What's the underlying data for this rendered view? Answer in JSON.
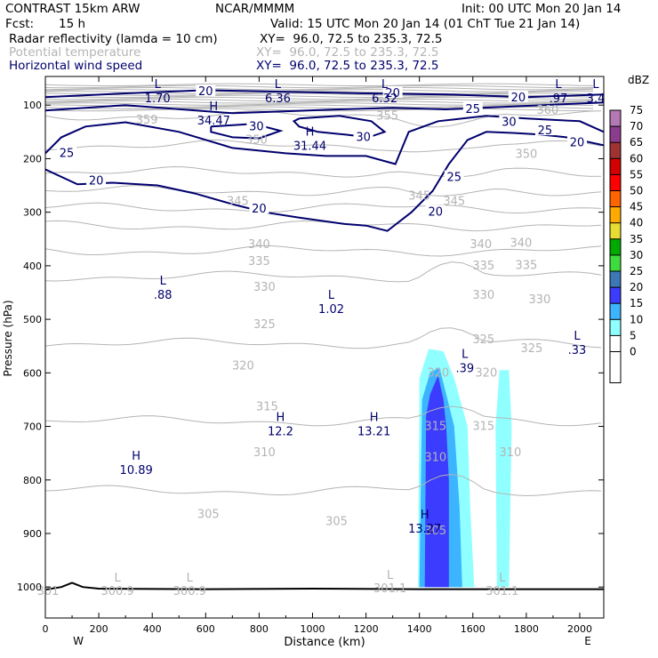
{
  "header": {
    "model": "CONTRAST 15km ARW",
    "org": "NCAR/MMMM",
    "init": "Init: 00 UTC Mon 20 Jan 14",
    "fcst_label": "Fcst:",
    "fcst_value": "15 h",
    "valid": "Valid: 15 UTC Mon 20 Jan 14 (01 ChT Tue 21 Jan 14)",
    "fields": [
      {
        "name": "Radar reflectivity (lamda = 10 cm)",
        "xy": "XY=  96.0, 72.5 to 235.3, 72.5",
        "color": "#000000"
      },
      {
        "name": "Potential temperature",
        "xy": "XY=  96.0, 72.5 to 235.3, 72.5",
        "color": "#b4b4b4"
      },
      {
        "name": "Horizontal wind speed",
        "xy": "XY=  96.0, 72.5 to 235.3, 72.5",
        "color": "#00006e"
      }
    ]
  },
  "chart_data": {
    "type": "contour cross-section",
    "xlabel": "Distance (km)",
    "ylabel": "Pressure (hPa)",
    "xlim": [
      0,
      2090
    ],
    "x_ticks": [
      "0",
      "200",
      "400",
      "600",
      "800",
      "1000",
      "1200",
      "1400",
      "1600",
      "1800",
      "2000"
    ],
    "x_tick_values": [
      0,
      200,
      400,
      600,
      800,
      1000,
      1200,
      1400,
      1600,
      1800,
      2000
    ],
    "y_ticks": [
      "100",
      "200",
      "300",
      "400",
      "500",
      "600",
      "700",
      "800",
      "900",
      "1000"
    ],
    "y_tick_values": [
      100,
      200,
      300,
      400,
      500,
      600,
      700,
      800,
      900,
      1000
    ],
    "ylim": [
      1050,
      50
    ],
    "left_end": "W",
    "right_end": "E",
    "colorbar": {
      "unit": "dBZ",
      "levels": [
        "0",
        "5",
        "10",
        "15",
        "20",
        "25",
        "30",
        "35",
        "40",
        "45",
        "50",
        "55",
        "60",
        "65",
        "70",
        "75"
      ],
      "colors": [
        "#ffffff",
        "#90ffff",
        "#3cb4ff",
        "#3c3cff",
        "#3c78b4",
        "#3cdc3c",
        "#00aa00",
        "#e6dc32",
        "#ffaa00",
        "#ff6400",
        "#ff0000",
        "#d20000",
        "#a03232",
        "#8c3c8c",
        "#b478b4"
      ]
    },
    "reflectivity_cells": [
      {
        "level": 5,
        "color": "#90ffff",
        "points": [
          [
            1395,
            1000
          ],
          [
            1400,
            610
          ],
          [
            1435,
            555
          ],
          [
            1490,
            560
          ],
          [
            1530,
            610
          ],
          [
            1580,
            700
          ],
          [
            1590,
            850
          ],
          [
            1605,
            1000
          ]
        ]
      },
      {
        "level": 5,
        "color": "#90ffff",
        "points": [
          [
            1690,
            1000
          ],
          [
            1685,
            700
          ],
          [
            1700,
            595
          ],
          [
            1735,
            595
          ],
          [
            1745,
            700
          ],
          [
            1740,
            850
          ],
          [
            1735,
            1000
          ]
        ]
      },
      {
        "level": 10,
        "color": "#3cb4ff",
        "points": [
          [
            1400,
            1000
          ],
          [
            1410,
            650
          ],
          [
            1440,
            600
          ],
          [
            1475,
            590
          ],
          [
            1500,
            640
          ],
          [
            1530,
            700
          ],
          [
            1550,
            850
          ],
          [
            1560,
            1000
          ]
        ]
      },
      {
        "level": 15,
        "color": "#3c3cff",
        "points": [
          [
            1420,
            1000
          ],
          [
            1425,
            680
          ],
          [
            1440,
            640
          ],
          [
            1470,
            605
          ],
          [
            1490,
            650
          ],
          [
            1500,
            700
          ],
          [
            1510,
            800
          ],
          [
            1510,
            1000
          ]
        ]
      }
    ],
    "theta_isotherms": [
      {
        "value": 355,
        "p": 120
      },
      {
        "value": 350,
        "p": 175
      },
      {
        "value": 345,
        "p": 225
      },
      {
        "value": 340,
        "p": 260
      },
      {
        "value": 335,
        "p": 292
      },
      {
        "value": 330,
        "p": 325
      },
      {
        "value": 325,
        "p": 372
      },
      {
        "value": 320,
        "p": 420
      },
      {
        "value": 315,
        "p": 545
      },
      {
        "value": 310,
        "p": 690
      },
      {
        "value": 305,
        "p": 820
      }
    ],
    "theta_labels": [
      {
        "text": "355",
        "x": 1280,
        "p": 120
      },
      {
        "text": "360",
        "x": 1880,
        "p": 110
      },
      {
        "text": "359",
        "x": 380,
        "p": 128
      },
      {
        "text": "350",
        "x": 790,
        "p": 165
      },
      {
        "text": "350",
        "x": 1800,
        "p": 192
      },
      {
        "text": "345",
        "x": 720,
        "p": 280
      },
      {
        "text": "345",
        "x": 1400,
        "p": 270
      },
      {
        "text": "345",
        "x": 1530,
        "p": 280
      },
      {
        "text": "340",
        "x": 800,
        "p": 360
      },
      {
        "text": "340",
        "x": 1630,
        "p": 360
      },
      {
        "text": "340",
        "x": 1780,
        "p": 358
      },
      {
        "text": "335",
        "x": 800,
        "p": 392
      },
      {
        "text": "335",
        "x": 1640,
        "p": 400
      },
      {
        "text": "335",
        "x": 1800,
        "p": 399
      },
      {
        "text": "330",
        "x": 820,
        "p": 440
      },
      {
        "text": "330",
        "x": 1640,
        "p": 455
      },
      {
        "text": "330",
        "x": 1850,
        "p": 463
      },
      {
        "text": "325",
        "x": 820,
        "p": 510
      },
      {
        "text": "325",
        "x": 1640,
        "p": 538
      },
      {
        "text": "325",
        "x": 1820,
        "p": 555
      },
      {
        "text": "320",
        "x": 740,
        "p": 587
      },
      {
        "text": "320",
        "x": 1470,
        "p": 600
      },
      {
        "text": "320",
        "x": 1650,
        "p": 600
      },
      {
        "text": "315",
        "x": 830,
        "p": 663
      },
      {
        "text": "315",
        "x": 1460,
        "p": 700
      },
      {
        "text": "315",
        "x": 1640,
        "p": 700
      },
      {
        "text": "310",
        "x": 820,
        "p": 749
      },
      {
        "text": "310",
        "x": 1460,
        "p": 758
      },
      {
        "text": "310",
        "x": 1740,
        "p": 749
      },
      {
        "text": "305",
        "x": 610,
        "p": 864
      },
      {
        "text": "305",
        "x": 1090,
        "p": 878
      },
      {
        "text": "305",
        "x": 1460,
        "p": 895
      }
    ],
    "wind_contours": [
      {
        "value": 30,
        "points": [
          [
            0,
            85
          ],
          [
            300,
            78
          ],
          [
            600,
            72
          ],
          [
            900,
            75
          ],
          [
            1200,
            78
          ],
          [
            1500,
            80
          ],
          [
            1800,
            85
          ],
          [
            2090,
            80
          ]
        ]
      },
      {
        "value": 25,
        "points": [
          [
            0,
            110
          ],
          [
            300,
            100
          ],
          [
            700,
            115
          ],
          [
            1100,
            108
          ],
          [
            1300,
            105
          ],
          [
            1500,
            108
          ],
          [
            2090,
            95
          ]
        ]
      },
      {
        "value": 30,
        "points": [
          [
            950,
            125
          ],
          [
            1100,
            120
          ],
          [
            1220,
            130
          ],
          [
            1270,
            150
          ],
          [
            1210,
            160
          ],
          [
            1120,
            155
          ],
          [
            1020,
            150
          ],
          [
            950,
            140
          ],
          [
            930,
            130
          ],
          [
            950,
            125
          ]
        ]
      },
      {
        "value": 30,
        "points": [
          [
            620,
            140
          ],
          [
            780,
            135
          ],
          [
            880,
            148
          ],
          [
            800,
            162
          ],
          [
            700,
            160
          ],
          [
            620,
            150
          ],
          [
            620,
            140
          ]
        ]
      },
      {
        "value": 25,
        "points": [
          [
            0,
            190
          ],
          [
            60,
            160
          ],
          [
            150,
            140
          ],
          [
            300,
            132
          ],
          [
            500,
            150
          ],
          [
            700,
            180
          ],
          [
            900,
            190
          ],
          [
            1050,
            195
          ],
          [
            1200,
            195
          ],
          [
            1310,
            210
          ],
          [
            1360,
            150
          ],
          [
            1470,
            130
          ],
          [
            1650,
            120
          ],
          [
            1800,
            125
          ],
          [
            2000,
            130
          ],
          [
            2090,
            150
          ]
        ]
      },
      {
        "value": 20,
        "points": [
          [
            0,
            220
          ],
          [
            120,
            248
          ],
          [
            250,
            245
          ],
          [
            420,
            250
          ],
          [
            560,
            265
          ],
          [
            700,
            285
          ],
          [
            820,
            300
          ],
          [
            950,
            310
          ],
          [
            1120,
            322
          ],
          [
            1200,
            325
          ],
          [
            1280,
            335
          ],
          [
            1370,
            300
          ],
          [
            1450,
            260
          ],
          [
            1510,
            210
          ],
          [
            1580,
            165
          ],
          [
            1650,
            150
          ],
          [
            1750,
            152
          ],
          [
            1850,
            155
          ],
          [
            1950,
            160
          ],
          [
            2090,
            175
          ]
        ]
      }
    ],
    "wind_labels": [
      {
        "text": "20",
        "x": 600,
        "p": 75
      },
      {
        "text": "20",
        "x": 1300,
        "p": 78
      },
      {
        "text": "20",
        "x": 1770,
        "p": 86
      },
      {
        "text": "25",
        "x": 1600,
        "p": 108
      },
      {
        "text": "30",
        "x": 790,
        "p": 140
      },
      {
        "text": "30",
        "x": 1190,
        "p": 160
      },
      {
        "text": "30",
        "x": 1735,
        "p": 132
      },
      {
        "text": "25",
        "x": 1870,
        "p": 148
      },
      {
        "text": "20",
        "x": 1990,
        "p": 170
      },
      {
        "text": "25",
        "x": 80,
        "p": 190
      },
      {
        "text": "25",
        "x": 1530,
        "p": 235
      },
      {
        "text": "20",
        "x": 190,
        "p": 242
      },
      {
        "text": "20",
        "x": 800,
        "p": 294
      },
      {
        "text": "20",
        "x": 1460,
        "p": 300
      }
    ],
    "extrema": [
      {
        "letter": "L",
        "value": "1.70",
        "x": 420,
        "p": 68
      },
      {
        "letter": "L",
        "value": "6.36",
        "x": 870,
        "p": 68
      },
      {
        "letter": "L",
        "value": "6.32",
        "x": 1270,
        "p": 68
      },
      {
        "letter": "L",
        "value": ".97",
        "x": 1920,
        "p": 68
      },
      {
        "letter": "L",
        "value": "3.4",
        "x": 2060,
        "p": 68
      },
      {
        "letter": "H",
        "value": "34.47",
        "x": 630,
        "p": 110
      },
      {
        "letter": "H",
        "value": "31.44",
        "x": 990,
        "p": 157
      },
      {
        "letter": "L",
        "value": ".88",
        "x": 440,
        "p": 435
      },
      {
        "letter": "L",
        "value": "1.02",
        "x": 1070,
        "p": 462
      },
      {
        "letter": "L",
        "value": ".33",
        "x": 1990,
        "p": 538
      },
      {
        "letter": "L",
        "value": ".39",
        "x": 1570,
        "p": 572
      },
      {
        "letter": "H",
        "value": "12.2",
        "x": 880,
        "p": 690
      },
      {
        "letter": "H",
        "value": "13.21",
        "x": 1230,
        "p": 690
      },
      {
        "letter": "H",
        "value": "10.89",
        "x": 340,
        "p": 762
      },
      {
        "letter": "H",
        "value": "13.27",
        "x": 1420,
        "p": 872
      }
    ],
    "surface_labels": [
      {
        "letter": "L",
        "value": "300.9",
        "x": 270,
        "p": 1000
      },
      {
        "letter": "L",
        "value": "300.9",
        "x": 540,
        "p": 1000
      },
      {
        "letter": "L",
        "value": "301.1",
        "x": 1290,
        "p": 995
      },
      {
        "letter": "L",
        "value": "301.1",
        "x": 1710,
        "p": 1000
      },
      {
        "letter": "",
        "value": "301",
        "x": 10,
        "p": 1000
      }
    ]
  }
}
